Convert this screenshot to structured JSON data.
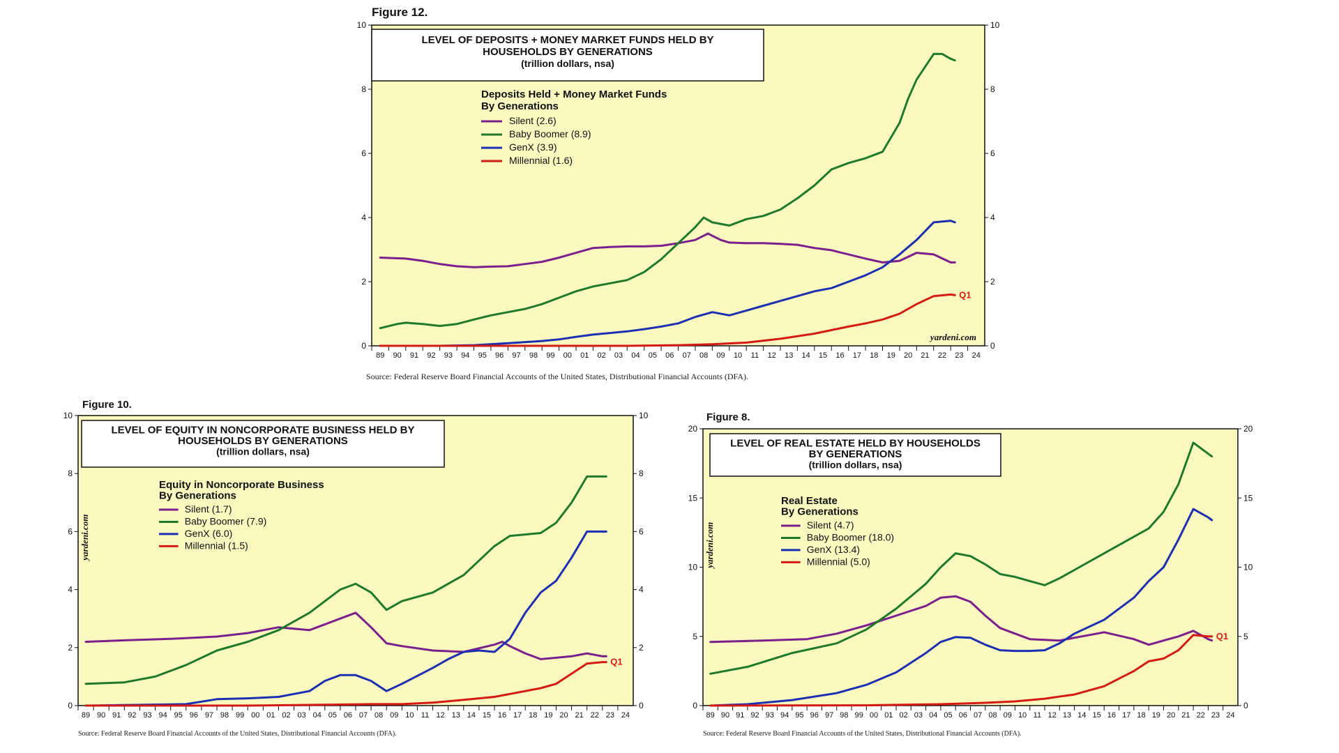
{
  "chart_data": [
    {
      "id": "fig12",
      "type": "line",
      "figure_label": "Figure 12.",
      "title_lines": [
        "LEVEL OF DEPOSITS + MONEY MARKET FUNDS HELD BY",
        "HOUSEHOLDS BY GENERATIONS"
      ],
      "subtitle": "(trillion dollars, nsa)",
      "legend_title": [
        "Deposits Held + Money Market Funds",
        "By Generations"
      ],
      "ylim": [
        0,
        10
      ],
      "yticks": [
        0,
        2,
        4,
        6,
        8,
        10
      ],
      "xlim": [
        1989,
        2025
      ],
      "xtick_labels": [
        "89",
        "90",
        "91",
        "92",
        "93",
        "94",
        "95",
        "96",
        "97",
        "98",
        "99",
        "00",
        "01",
        "02",
        "03",
        "04",
        "05",
        "06",
        "07",
        "08",
        "09",
        "10",
        "11",
        "12",
        "13",
        "14",
        "15",
        "16",
        "17",
        "18",
        "19",
        "20",
        "21",
        "22",
        "23",
        "24"
      ],
      "watermark": "yardeni.com",
      "last_point_label": "Q1",
      "source": "Source: Federal Reserve Board Financial Accounts of the United States, Distributional Financial Accounts (DFA).",
      "series": [
        {
          "name": "Silent",
          "legend": "Silent (2.6)",
          "color": "#7a1f8c",
          "x": [
            1989.5,
            1991,
            1992,
            1993,
            1994,
            1995,
            1996,
            1997,
            1998,
            1999,
            2000,
            2001,
            2002,
            2003,
            2004,
            2005,
            2006,
            2007,
            2008,
            2008.75,
            2009.5,
            2010,
            2011,
            2012,
            2013,
            2014,
            2015,
            2016,
            2017,
            2018,
            2019,
            2020,
            2021,
            2022,
            2023,
            2023.25
          ],
          "y": [
            2.75,
            2.72,
            2.65,
            2.55,
            2.48,
            2.45,
            2.47,
            2.48,
            2.55,
            2.62,
            2.75,
            2.9,
            3.05,
            3.08,
            3.1,
            3.1,
            3.12,
            3.2,
            3.3,
            3.5,
            3.3,
            3.22,
            3.2,
            3.2,
            3.18,
            3.15,
            3.05,
            2.98,
            2.85,
            2.72,
            2.6,
            2.65,
            2.9,
            2.85,
            2.6,
            2.6
          ]
        },
        {
          "name": "Baby Boomer",
          "legend": "Baby Boomer (8.9)",
          "color": "#1e7a2a",
          "x": [
            1989.5,
            1990.5,
            1991,
            1992,
            1993,
            1994,
            1995,
            1996,
            1997,
            1998,
            1999,
            2000,
            2001,
            2002,
            2003,
            2004,
            2005,
            2006,
            2007,
            2008,
            2008.5,
            2009,
            2010,
            2011,
            2012,
            2013,
            2014,
            2015,
            2016,
            2017,
            2018,
            2019,
            2020,
            2020.5,
            2021,
            2021.5,
            2022,
            2022.5,
            2023,
            2023.25
          ],
          "y": [
            0.55,
            0.68,
            0.72,
            0.68,
            0.62,
            0.68,
            0.82,
            0.95,
            1.05,
            1.15,
            1.3,
            1.5,
            1.7,
            1.85,
            1.95,
            2.05,
            2.3,
            2.7,
            3.2,
            3.7,
            4.0,
            3.85,
            3.75,
            3.95,
            4.05,
            4.25,
            4.6,
            5.0,
            5.5,
            5.7,
            5.85,
            6.05,
            6.95,
            7.7,
            8.3,
            8.7,
            9.1,
            9.1,
            8.95,
            8.9
          ]
        },
        {
          "name": "GenX",
          "legend": "GenX (3.9)",
          "color": "#1c2fb0",
          "x": [
            1989.5,
            1991,
            1993,
            1995,
            1997,
            1999,
            2000,
            2001,
            2002,
            2003,
            2004,
            2005,
            2006,
            2007,
            2008,
            2009,
            2010,
            2011,
            2012,
            2013,
            2014,
            2015,
            2016,
            2017,
            2018,
            2019,
            2020,
            2021,
            2022,
            2023,
            2023.25
          ],
          "y": [
            0.0,
            0.0,
            0.0,
            0.02,
            0.08,
            0.15,
            0.2,
            0.28,
            0.35,
            0.4,
            0.45,
            0.52,
            0.6,
            0.7,
            0.9,
            1.05,
            0.95,
            1.1,
            1.25,
            1.4,
            1.55,
            1.7,
            1.8,
            2.0,
            2.2,
            2.45,
            2.85,
            3.3,
            3.85,
            3.9,
            3.85
          ]
        },
        {
          "name": "Millennial",
          "legend": "Millennial (1.6)",
          "color": "#d41a12",
          "x": [
            1989.5,
            1995,
            2000,
            2004,
            2007,
            2009,
            2011,
            2013,
            2015,
            2017,
            2018,
            2019,
            2020,
            2021,
            2022,
            2023,
            2023.25
          ],
          "y": [
            0.0,
            0.0,
            0.0,
            0.0,
            0.02,
            0.05,
            0.1,
            0.22,
            0.38,
            0.6,
            0.7,
            0.82,
            1.0,
            1.3,
            1.55,
            1.6,
            1.58
          ]
        }
      ]
    },
    {
      "id": "fig10",
      "type": "line",
      "figure_label": "Figure 10.",
      "title_lines": [
        "LEVEL OF EQUITY IN NONCORPORATE BUSINESS HELD BY",
        "HOUSEHOLDS BY GENERATIONS"
      ],
      "subtitle": "(trillion dollars, nsa)",
      "legend_title": [
        "Equity in Noncorporate Business",
        "By Generations"
      ],
      "ylim": [
        0,
        10
      ],
      "yticks": [
        0,
        2,
        4,
        6,
        8,
        10
      ],
      "xlim": [
        1989,
        2025
      ],
      "xtick_labels": [
        "89",
        "90",
        "91",
        "92",
        "93",
        "94",
        "95",
        "96",
        "97",
        "98",
        "99",
        "00",
        "01",
        "02",
        "03",
        "04",
        "05",
        "06",
        "07",
        "08",
        "09",
        "10",
        "11",
        "12",
        "13",
        "14",
        "15",
        "16",
        "17",
        "18",
        "19",
        "20",
        "21",
        "22",
        "23",
        "24"
      ],
      "watermark": "yardeni.com",
      "last_point_label": "Q1",
      "source": "Source: Federal Reserve Board Financial Accounts of the United States, Distributional Financial Accounts (DFA).",
      "series": [
        {
          "name": "Silent",
          "legend": "Silent (1.7)",
          "color": "#7a1f8c",
          "x": [
            1989.5,
            1992,
            1995,
            1998,
            2000,
            2002,
            2004,
            2006,
            2007,
            2008,
            2009,
            2010,
            2012,
            2014,
            2016,
            2016.5,
            2017,
            2018,
            2019,
            2020,
            2021,
            2022,
            2023,
            2023.25
          ],
          "y": [
            2.2,
            2.25,
            2.3,
            2.38,
            2.5,
            2.7,
            2.6,
            3.0,
            3.2,
            2.7,
            2.15,
            2.05,
            1.9,
            1.85,
            2.1,
            2.2,
            2.05,
            1.8,
            1.6,
            1.65,
            1.7,
            1.8,
            1.7,
            1.7
          ]
        },
        {
          "name": "Baby Boomer",
          "legend": "Baby Boomer (7.9)",
          "color": "#1e7a2a",
          "x": [
            1989.5,
            1992,
            1994,
            1996,
            1998,
            2000,
            2002,
            2004,
            2006,
            2007,
            2008,
            2009,
            2010,
            2012,
            2014,
            2016,
            2017,
            2018,
            2019,
            2020,
            2021,
            2022,
            2023,
            2023.25
          ],
          "y": [
            0.75,
            0.8,
            1.0,
            1.4,
            1.9,
            2.2,
            2.6,
            3.2,
            4.0,
            4.2,
            3.9,
            3.3,
            3.6,
            3.9,
            4.5,
            5.5,
            5.85,
            5.9,
            5.95,
            6.3,
            7.0,
            7.9,
            7.9,
            7.9
          ]
        },
        {
          "name": "GenX",
          "legend": "GenX (6.0)",
          "color": "#1c2fb0",
          "x": [
            1989.5,
            1996,
            1998,
            2000,
            2002,
            2004,
            2005,
            2006,
            2007,
            2008,
            2009,
            2010,
            2012,
            2013,
            2014,
            2015,
            2016,
            2017,
            2018,
            2019,
            2020,
            2021,
            2022,
            2023,
            2023.25
          ],
          "y": [
            0.0,
            0.05,
            0.22,
            0.25,
            0.3,
            0.5,
            0.85,
            1.05,
            1.05,
            0.85,
            0.5,
            0.75,
            1.3,
            1.6,
            1.85,
            1.9,
            1.85,
            2.3,
            3.2,
            3.9,
            4.3,
            5.1,
            6.0,
            6.0,
            6.0
          ]
        },
        {
          "name": "Millennial",
          "legend": "Millennial (1.5)",
          "color": "#d41a12",
          "x": [
            1989.5,
            2000,
            2005,
            2008,
            2010,
            2012,
            2014,
            2016,
            2018,
            2019,
            2020,
            2021,
            2022,
            2023,
            2023.25
          ],
          "y": [
            0.0,
            0.0,
            0.03,
            0.05,
            0.05,
            0.1,
            0.2,
            0.3,
            0.5,
            0.6,
            0.75,
            1.1,
            1.45,
            1.5,
            1.5
          ]
        }
      ]
    },
    {
      "id": "fig8",
      "type": "line",
      "figure_label": "Figure 8.",
      "title_lines": [
        "LEVEL OF REAL ESTATE HELD BY HOUSEHOLDS",
        "BY GENERATIONS"
      ],
      "subtitle": "(trillion dollars, nsa)",
      "legend_title": [
        "Real Estate",
        "By Generations"
      ],
      "ylim": [
        0,
        20
      ],
      "yticks": [
        0,
        5,
        10,
        15,
        20
      ],
      "xlim": [
        1989,
        2025
      ],
      "xtick_labels": [
        "89",
        "90",
        "91",
        "92",
        "93",
        "94",
        "95",
        "96",
        "97",
        "98",
        "99",
        "00",
        "01",
        "02",
        "03",
        "04",
        "05",
        "06",
        "07",
        "08",
        "09",
        "10",
        "11",
        "12",
        "13",
        "14",
        "15",
        "16",
        "17",
        "18",
        "19",
        "20",
        "21",
        "22",
        "23",
        "24"
      ],
      "watermark": "yardeni.com",
      "last_point_label": "Q1",
      "source": "Source: Federal Reserve Board Financial Accounts of the United States, Distributional Financial Accounts (DFA).",
      "series": [
        {
          "name": "Silent",
          "legend": "Silent (4.7)",
          "color": "#7a1f8c",
          "x": [
            1989.5,
            1993,
            1996,
            1998,
            2000,
            2002,
            2004,
            2005,
            2006,
            2007,
            2008,
            2009,
            2011,
            2013,
            2015,
            2016,
            2018,
            2019,
            2020,
            2021,
            2022,
            2023,
            2023.25
          ],
          "y": [
            4.6,
            4.7,
            4.8,
            5.2,
            5.8,
            6.5,
            7.2,
            7.8,
            7.9,
            7.5,
            6.5,
            5.6,
            4.8,
            4.7,
            5.1,
            5.3,
            4.8,
            4.4,
            4.7,
            5.0,
            5.4,
            4.8,
            4.7
          ]
        },
        {
          "name": "Baby Boomer",
          "legend": "Baby Boomer (18.0)",
          "color": "#1e7a2a",
          "x": [
            1989.5,
            1992,
            1995,
            1998,
            2000,
            2002,
            2004,
            2005,
            2006,
            2007,
            2008,
            2009,
            2010,
            2011,
            2012,
            2013,
            2014,
            2016,
            2018,
            2019,
            2020,
            2021,
            2022,
            2023,
            2023.25
          ],
          "y": [
            2.3,
            2.8,
            3.8,
            4.5,
            5.5,
            7.0,
            8.8,
            10.0,
            11.0,
            10.8,
            10.2,
            9.5,
            9.3,
            9.0,
            8.7,
            9.2,
            9.8,
            11.0,
            12.2,
            12.8,
            14.0,
            16.0,
            19.0,
            18.2,
            18.0
          ]
        },
        {
          "name": "GenX",
          "legend": "GenX (13.4)",
          "color": "#1c2fb0",
          "x": [
            1989.5,
            1992,
            1995,
            1998,
            2000,
            2002,
            2004,
            2005,
            2006,
            2007,
            2008,
            2009,
            2010,
            2011,
            2012,
            2013,
            2014,
            2016,
            2018,
            2019,
            2020,
            2021,
            2022,
            2023,
            2023.25
          ],
          "y": [
            0.0,
            0.1,
            0.4,
            0.9,
            1.5,
            2.4,
            3.8,
            4.6,
            4.95,
            4.9,
            4.4,
            4.0,
            3.95,
            3.95,
            4.0,
            4.5,
            5.2,
            6.2,
            7.8,
            9.0,
            10.0,
            12.0,
            14.2,
            13.6,
            13.4
          ]
        },
        {
          "name": "Millennial",
          "legend": "Millennial (5.0)",
          "color": "#d41a12",
          "x": [
            1989.5,
            2000,
            2005,
            2008,
            2010,
            2012,
            2014,
            2016,
            2018,
            2019,
            2020,
            2021,
            2022,
            2023,
            2023.25
          ],
          "y": [
            0.0,
            0.02,
            0.1,
            0.2,
            0.3,
            0.5,
            0.8,
            1.4,
            2.5,
            3.2,
            3.4,
            4.0,
            5.1,
            5.0,
            5.0
          ]
        }
      ]
    }
  ]
}
